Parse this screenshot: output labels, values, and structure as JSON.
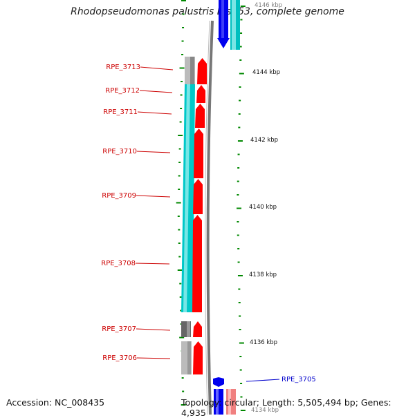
{
  "title": "Rhodopseudomonas palustris BisA53, complete genome",
  "footer": {
    "accession": "Accession: NC_008435",
    "topology": "Topology: circular; Length: 5,505,494 bp; Genes: 4,935"
  },
  "colors": {
    "forward_cds": "#ff0000",
    "reverse_cds": "#0000ff",
    "forward_gc": "#00cccc",
    "reverse_gray": "#999999",
    "tick": "#008800",
    "label_reverse": "#cc0000",
    "label_forward": "#0000cc"
  },
  "scale": {
    "unit": "kbp",
    "labels": [
      "4146 kbp",
      "4144 kbp",
      "4142 kbp",
      "4140 kbp",
      "4138 kbp",
      "4136 kbp",
      "4134 kbp"
    ]
  },
  "genes": [
    {
      "id": "RPE_3713",
      "strand": "reverse"
    },
    {
      "id": "RPE_3712",
      "strand": "reverse"
    },
    {
      "id": "RPE_3711",
      "strand": "reverse"
    },
    {
      "id": "RPE_3710",
      "strand": "reverse"
    },
    {
      "id": "RPE_3709",
      "strand": "reverse"
    },
    {
      "id": "RPE_3708",
      "strand": "reverse"
    },
    {
      "id": "RPE_3707",
      "strand": "reverse"
    },
    {
      "id": "RPE_3706",
      "strand": "reverse"
    },
    {
      "id": "RPE_3705",
      "strand": "forward"
    }
  ]
}
